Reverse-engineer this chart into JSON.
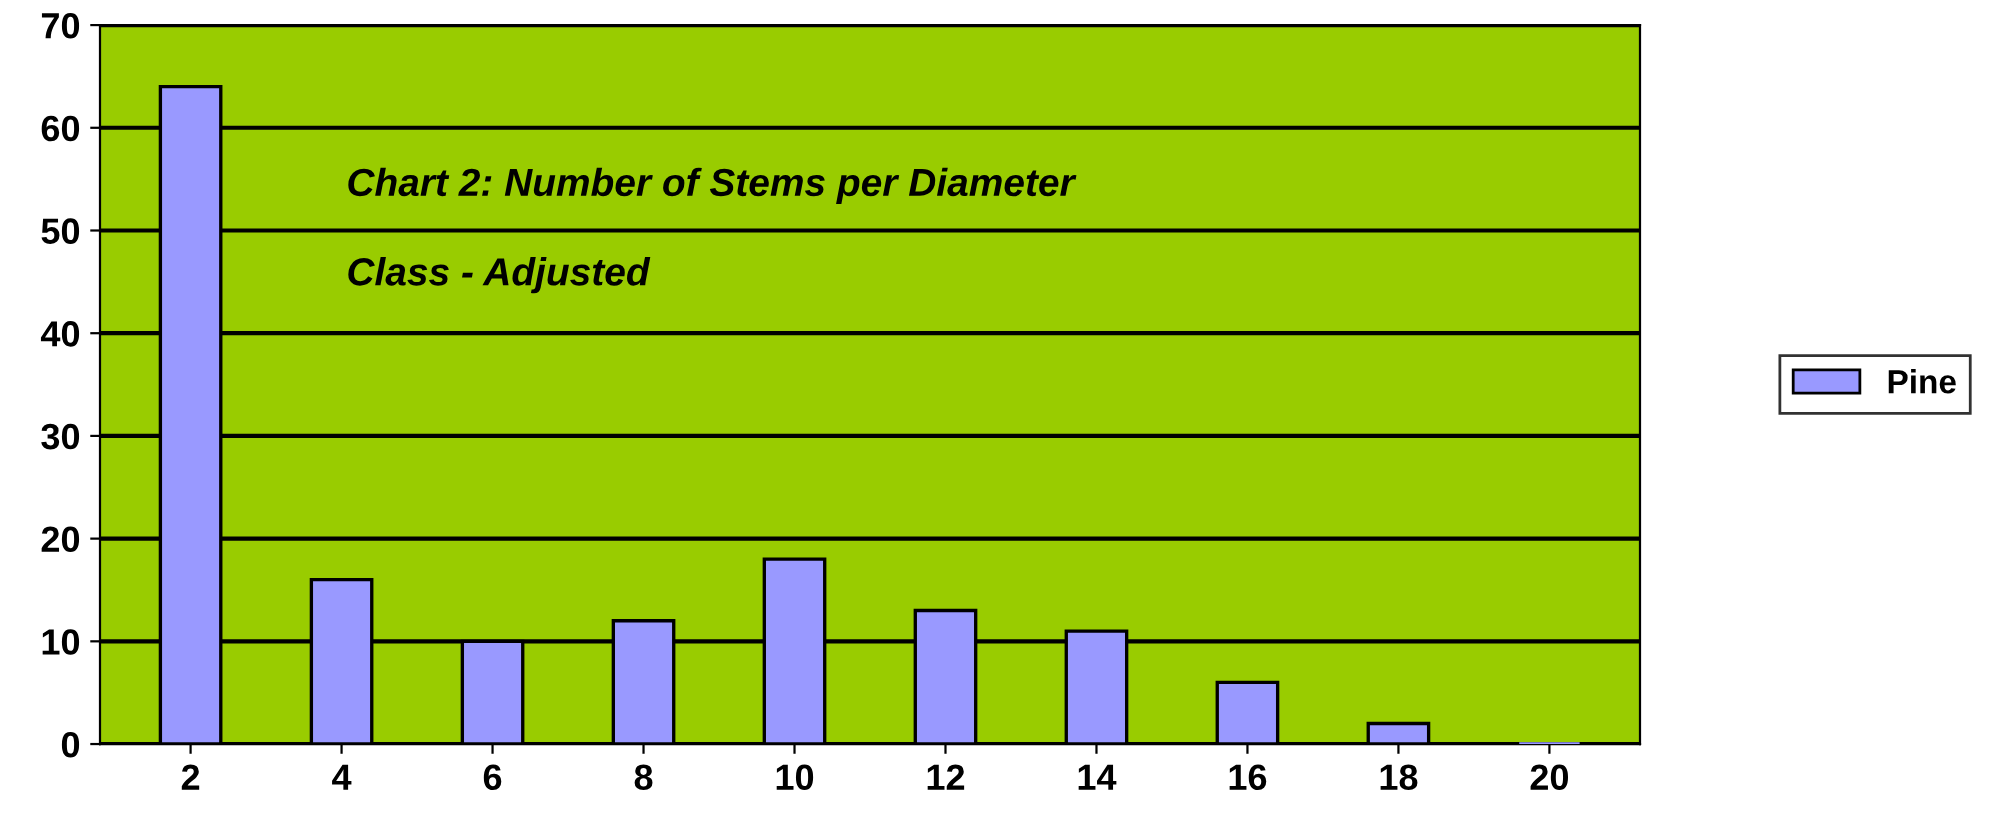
{
  "chart_data": {
    "type": "bar",
    "title": "Chart 2: Number of Stems per Diameter\n\nClass - Adjusted",
    "categories": [
      "2",
      "4",
      "6",
      "8",
      "10",
      "12",
      "14",
      "16",
      "18",
      "20"
    ],
    "series": [
      {
        "name": "Pine",
        "color": "#9999ff",
        "values": [
          64,
          16,
          10,
          12,
          18,
          13,
          11,
          6,
          2,
          0
        ]
      }
    ],
    "ylim": [
      0,
      70
    ],
    "yticks": [
      0,
      10,
      20,
      30,
      40,
      50,
      60,
      70
    ],
    "grid": "y",
    "legend": "right"
  }
}
